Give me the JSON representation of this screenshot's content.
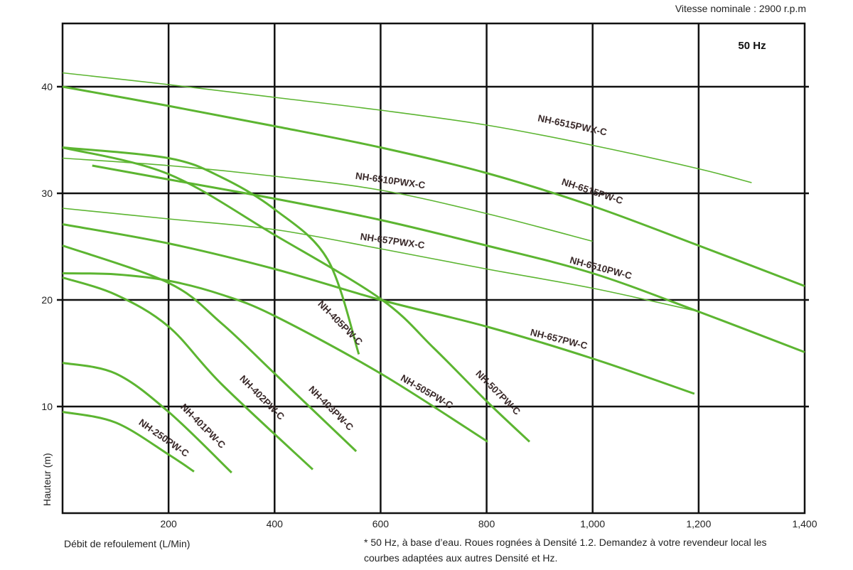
{
  "chart_data": {
    "type": "line",
    "title": "",
    "speed_note": "Vitesse nominale : 2900 r.p.m",
    "frequency_badge": "50 Hz",
    "xlabel": "Débit de refoulement (L/Min)",
    "ylabel": "Hauteur (m)",
    "footnote_line1": "* 50 Hz, à base d’eau. Roues rognées à Densité 1.2. Demandez à votre revendeur local les",
    "footnote_line2": "courbes adaptées aux autres Densité et Hz.",
    "xlim": [
      0,
      1400
    ],
    "ylim": [
      0,
      46
    ],
    "grid": true,
    "x_ticks": [
      200,
      400,
      600,
      800,
      1000,
      1200,
      1400
    ],
    "x_tick_labels": [
      "200",
      "400",
      "600",
      "800",
      "1,000",
      "1,200",
      "1,400"
    ],
    "y_ticks": [
      10,
      20,
      30,
      40
    ],
    "y_tick_labels": [
      "10",
      "20",
      "30",
      "40"
    ],
    "line_color": "#5cb531",
    "series": [
      {
        "name": "NH-6515PWX-C",
        "weight": "thin",
        "x": [
          0,
          200,
          400,
          600,
          800,
          1000,
          1200,
          1300
        ],
        "y": [
          41.3,
          40.2,
          39.0,
          37.8,
          36.4,
          34.5,
          32.3,
          31.0
        ]
      },
      {
        "name": "NH-6515PW-C",
        "weight": "thick",
        "x": [
          0,
          200,
          400,
          600,
          800,
          1000,
          1200,
          1400
        ],
        "y": [
          40.0,
          38.2,
          36.3,
          34.3,
          31.9,
          28.8,
          25.1,
          21.3
        ]
      },
      {
        "name": "NH-6510PWX-C",
        "weight": "thin",
        "x": [
          0,
          200,
          400,
          600,
          800,
          1000
        ],
        "y": [
          33.3,
          32.6,
          31.6,
          30.3,
          28.1,
          25.5
        ]
      },
      {
        "name": "NH-6510PW-C",
        "weight": "thick",
        "x": [
          56,
          200,
          400,
          600,
          800,
          1000,
          1200,
          1400
        ],
        "y": [
          32.6,
          31.3,
          29.5,
          27.5,
          25.1,
          22.5,
          18.9,
          15.1
        ]
      },
      {
        "name": "NH-657PWX-C",
        "weight": "thin",
        "x": [
          0,
          200,
          400,
          600,
          800,
          1000,
          1192
        ],
        "y": [
          28.6,
          27.6,
          26.6,
          24.8,
          22.9,
          21.1,
          19.0
        ]
      },
      {
        "name": "NH-657PW-C",
        "weight": "thick",
        "x": [
          0,
          200,
          400,
          600,
          800,
          1000,
          1192
        ],
        "y": [
          27.1,
          25.3,
          22.9,
          20.0,
          17.5,
          14.5,
          11.2
        ]
      },
      {
        "name": "NH-405PW-C",
        "weight": "thick",
        "x": [
          0,
          200,
          300,
          400,
          500,
          559
        ],
        "y": [
          34.3,
          33.3,
          31.5,
          28.5,
          23.8,
          14.9
        ]
      },
      {
        "name": "NH-507PW-C",
        "weight": "thick",
        "x": [
          0,
          200,
          400,
          600,
          700,
          800,
          881
        ],
        "y": [
          34.3,
          31.8,
          26.1,
          20.1,
          15.5,
          10.5,
          6.7
        ]
      },
      {
        "name": "NH-505PW-C",
        "weight": "thick",
        "x": [
          0,
          100,
          200,
          300,
          400,
          600,
          802
        ],
        "y": [
          22.5,
          22.4,
          21.8,
          20.5,
          18.5,
          13.1,
          6.7
        ]
      },
      {
        "name": "NH-403PW-C",
        "weight": "thick",
        "x": [
          0,
          200,
          300,
          400,
          554
        ],
        "y": [
          25.1,
          21.6,
          17.8,
          13.1,
          5.8
        ]
      },
      {
        "name": "NH-402PW-C",
        "weight": "thick",
        "x": [
          0,
          100,
          200,
          300,
          472
        ],
        "y": [
          22.1,
          20.5,
          17.5,
          12.1,
          4.1
        ]
      },
      {
        "name": "NH-401PW-C",
        "weight": "thick",
        "x": [
          0,
          100,
          200,
          319
        ],
        "y": [
          14.1,
          13.1,
          9.5,
          3.8
        ]
      },
      {
        "name": "NH-250PW-C",
        "weight": "thick",
        "x": [
          0,
          100,
          200,
          248
        ],
        "y": [
          9.5,
          8.5,
          5.5,
          3.9
        ]
      }
    ]
  }
}
